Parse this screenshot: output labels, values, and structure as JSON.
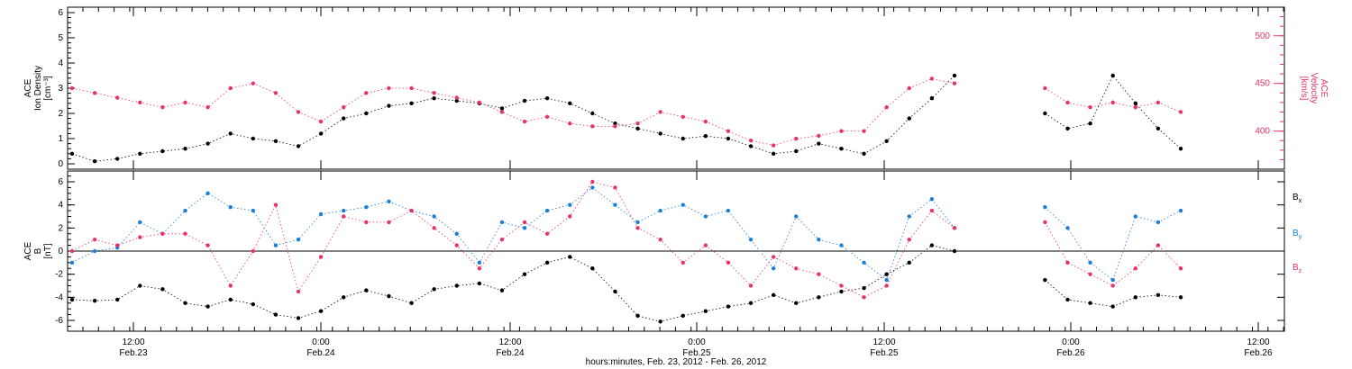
{
  "chart_data": [
    {
      "type": "scatter",
      "ylabel_left": [
        "ACE",
        "Ion Density",
        "[cm⁻³]"
      ],
      "ylabel_right": [
        "ACE",
        "Velocity",
        "[km/s]"
      ],
      "ylim_left": [
        -0.3,
        6.2
      ],
      "ylim_right": [
        360,
        530
      ],
      "yticks_left": [
        0,
        1,
        2,
        3,
        4,
        5,
        6
      ],
      "yticks_right": [
        400,
        450,
        500
      ],
      "colors": {
        "density": "#000000",
        "velocity": "#e8336a"
      },
      "series": [
        {
          "key": "density",
          "x": [
            0,
            2,
            4,
            6,
            8,
            10,
            12,
            14,
            16,
            18,
            20,
            22,
            24,
            26,
            28,
            30,
            32,
            34,
            36,
            38,
            40,
            42,
            44,
            46,
            48,
            50,
            52,
            54,
            56,
            58,
            60,
            62,
            64,
            66,
            68,
            70,
            72,
            74,
            76,
            78,
            80,
            82,
            84,
            86,
            88,
            90,
            92,
            94,
            96,
            98
          ],
          "values": [
            0.4,
            0.1,
            0.2,
            0.4,
            0.5,
            0.6,
            0.8,
            1.2,
            1.0,
            0.9,
            0.7,
            1.2,
            1.8,
            2.0,
            2.3,
            2.4,
            2.6,
            2.5,
            2.4,
            2.2,
            2.5,
            2.6,
            2.4,
            2.0,
            1.6,
            1.4,
            1.2,
            1.0,
            1.1,
            1.0,
            0.7,
            0.4,
            0.5,
            0.8,
            0.6,
            0.4,
            0.9,
            1.8,
            2.6,
            3.5,
            null,
            null,
            null,
            2.0,
            1.4,
            1.6,
            3.5,
            2.4,
            1.4,
            0.6
          ]
        },
        {
          "key": "velocity",
          "x": [
            0,
            2,
            4,
            6,
            8,
            10,
            12,
            14,
            16,
            18,
            20,
            22,
            24,
            26,
            28,
            30,
            32,
            34,
            36,
            38,
            40,
            42,
            44,
            46,
            48,
            50,
            52,
            54,
            56,
            58,
            60,
            62,
            64,
            66,
            68,
            70,
            72,
            74,
            76,
            78,
            80,
            82,
            84,
            86,
            88,
            90,
            92,
            94,
            96,
            98
          ],
          "values": [
            445,
            440,
            435,
            430,
            425,
            430,
            425,
            445,
            450,
            440,
            420,
            410,
            425,
            440,
            445,
            445,
            440,
            435,
            430,
            420,
            410,
            415,
            408,
            405,
            405,
            408,
            420,
            415,
            410,
            400,
            390,
            385,
            392,
            395,
            400,
            400,
            425,
            445,
            455,
            450,
            null,
            null,
            null,
            445,
            430,
            425,
            430,
            425,
            430,
            420
          ]
        }
      ]
    },
    {
      "type": "scatter",
      "ylabel_left": [
        "ACE",
        "B",
        "[nT]"
      ],
      "ylim": [
        -7,
        7
      ],
      "yticks": [
        -6,
        -4,
        -2,
        0,
        2,
        4,
        6
      ],
      "legend": [
        "Bₓ",
        "Bᵧ",
        "B_z"
      ],
      "legend_labels": {
        "bx": "B",
        "by": "B",
        "bz": "B",
        "bx_sub": "x",
        "by_sub": "y",
        "bz_sub": "z"
      },
      "colors": {
        "bx": "#000000",
        "by": "#1a7fd8",
        "bz": "#e8336a"
      },
      "series": [
        {
          "key": "bx",
          "x": [
            0,
            2,
            4,
            6,
            8,
            10,
            12,
            14,
            16,
            18,
            20,
            22,
            24,
            26,
            28,
            30,
            32,
            34,
            36,
            38,
            40,
            42,
            44,
            46,
            48,
            50,
            52,
            54,
            56,
            58,
            60,
            62,
            64,
            66,
            68,
            70,
            72,
            74,
            76,
            78,
            80,
            82,
            84,
            86,
            88,
            90,
            92,
            94,
            96,
            98
          ],
          "values": [
            -4.2,
            -4.3,
            -4.2,
            -3.0,
            -3.3,
            -4.5,
            -4.8,
            -4.2,
            -4.6,
            -5.5,
            -5.8,
            -5.2,
            -4.0,
            -3.4,
            -3.9,
            -4.5,
            -3.3,
            -3.0,
            -2.8,
            -3.4,
            -2.0,
            -1.0,
            -0.5,
            -1.5,
            -3.5,
            -5.6,
            -6.1,
            -5.6,
            -5.2,
            -4.8,
            -4.5,
            -3.8,
            -4.5,
            -4.0,
            -3.5,
            -3.2,
            -2.0,
            -1.0,
            0.5,
            0.0,
            null,
            null,
            null,
            -2.5,
            -4.2,
            -4.5,
            -4.8,
            -4.0,
            -3.8,
            -4.0
          ]
        },
        {
          "key": "by",
          "x": [
            0,
            2,
            4,
            6,
            8,
            10,
            12,
            14,
            16,
            18,
            20,
            22,
            24,
            26,
            28,
            30,
            32,
            34,
            36,
            38,
            40,
            42,
            44,
            46,
            48,
            50,
            52,
            54,
            56,
            58,
            60,
            62,
            64,
            66,
            68,
            70,
            72,
            74,
            76,
            78,
            80,
            82,
            84,
            86,
            88,
            90,
            92,
            94,
            96,
            98
          ],
          "values": [
            -1.0,
            0.0,
            0.3,
            2.5,
            1.5,
            3.5,
            5.0,
            3.8,
            3.5,
            0.5,
            1.0,
            3.2,
            3.5,
            3.8,
            4.3,
            3.5,
            3.0,
            1.5,
            -1.0,
            2.5,
            2.0,
            3.5,
            4.0,
            5.5,
            4.0,
            2.5,
            3.5,
            4.0,
            3.0,
            3.5,
            1.0,
            -1.5,
            3.0,
            1.0,
            0.5,
            -1.0,
            -2.5,
            3.0,
            4.5,
            2.0,
            null,
            null,
            null,
            3.8,
            2.0,
            -1.0,
            -2.5,
            3.0,
            2.5,
            3.5
          ]
        },
        {
          "key": "bz",
          "x": [
            0,
            2,
            4,
            6,
            8,
            10,
            12,
            14,
            16,
            18,
            20,
            22,
            24,
            26,
            28,
            30,
            32,
            34,
            36,
            38,
            40,
            42,
            44,
            46,
            48,
            50,
            52,
            54,
            56,
            58,
            60,
            62,
            64,
            66,
            68,
            70,
            72,
            74,
            76,
            78,
            80,
            82,
            84,
            86,
            88,
            90,
            92,
            94,
            96,
            98
          ],
          "values": [
            0.0,
            1.0,
            0.5,
            1.2,
            1.5,
            1.5,
            0.5,
            -3.0,
            0.0,
            4.0,
            -3.5,
            -0.5,
            3.0,
            2.5,
            2.5,
            3.5,
            2.0,
            0.5,
            -1.5,
            1.0,
            2.5,
            1.5,
            3.0,
            6.0,
            5.5,
            2.0,
            1.0,
            -1.0,
            0.5,
            -1.0,
            -3.0,
            -0.5,
            -1.5,
            -2.0,
            -3.0,
            -4.0,
            -3.0,
            1.0,
            3.5,
            2.0,
            null,
            null,
            null,
            2.5,
            -1.0,
            -2.0,
            -3.0,
            -1.5,
            0.5,
            -1.5
          ]
        }
      ]
    }
  ],
  "xaxis": {
    "title": "hours:minutes, Feb. 23, 2012 - Feb. 26, 2012",
    "ticks": [
      {
        "time": "12:00",
        "date": "Feb.23"
      },
      {
        "time": "0:00",
        "date": "Feb.24"
      },
      {
        "time": "12:00",
        "date": "Feb.24"
      },
      {
        "time": "0:00",
        "date": "Feb.25"
      },
      {
        "time": "12:00",
        "date": "Feb.25"
      },
      {
        "time": "0:00",
        "date": "Feb.26"
      },
      {
        "time": "12:00",
        "date": "Feb.26"
      }
    ]
  }
}
